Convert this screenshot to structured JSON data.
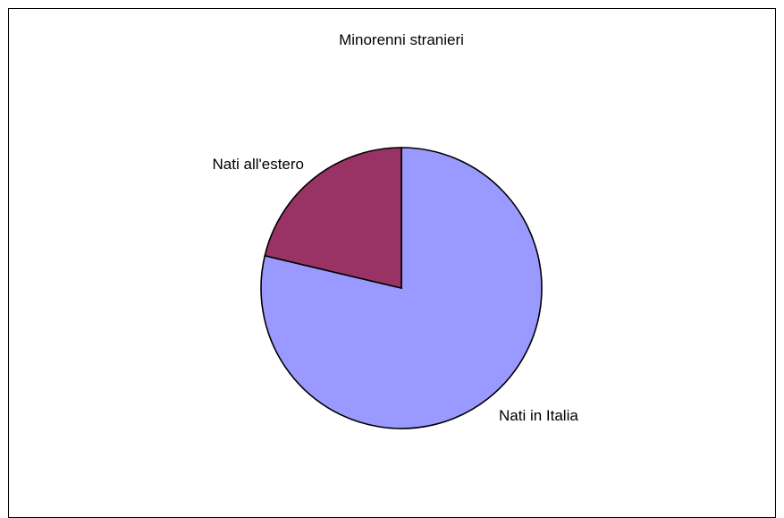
{
  "chart_data": {
    "type": "pie",
    "title": "Minorenni stranieri",
    "categories": [
      "Nati in Italia",
      "Nati all'estero"
    ],
    "values": [
      78.7,
      21.3
    ],
    "colors": [
      "#9999ff",
      "#993366"
    ],
    "border_color": "#000000"
  }
}
